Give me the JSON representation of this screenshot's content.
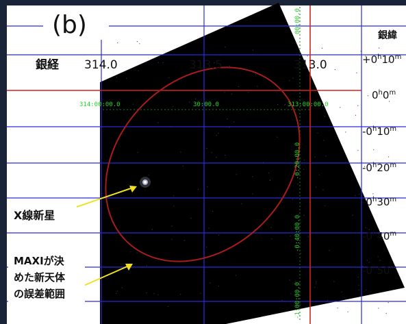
{
  "panel_label": "(b)",
  "galactic_longitude": {
    "label": "銀経",
    "ticks": [
      "314.0",
      "313.5",
      "313.0"
    ]
  },
  "galactic_latitude": {
    "label": "銀緯",
    "ticks": [
      {
        "h": "+0",
        "m": "10"
      },
      {
        "h": "0",
        "m": "0"
      },
      {
        "h": "-0",
        "m": "10"
      },
      {
        "h": "-0",
        "m": "20"
      },
      {
        "h": "-0",
        "m": "30"
      },
      {
        "h": "-0",
        "m": "40"
      },
      {
        "h": "-0",
        "m": "50"
      }
    ]
  },
  "image_grid_labels": {
    "horizontal": [
      "314:00:00.0",
      "30:00.0",
      "313:00:00.0"
    ],
    "vertical": [
      "00:00.0",
      "-0:20:00.0",
      "-0:40:00.0",
      "-1:00:00.0"
    ]
  },
  "annotations": {
    "nova": "X線新星",
    "error_region": [
      "MAXIが決",
      "めた新天体",
      "の誤差範囲"
    ]
  },
  "colors": {
    "background": "#1a2438",
    "plot_area": "#ffffff",
    "image": "#000000",
    "blue_grid": "#2b2bd8",
    "red_axis": "#d42424",
    "ellipse": "#a81c1c",
    "arrow": "#f0e020",
    "green_grid_labels": "#22d422"
  }
}
